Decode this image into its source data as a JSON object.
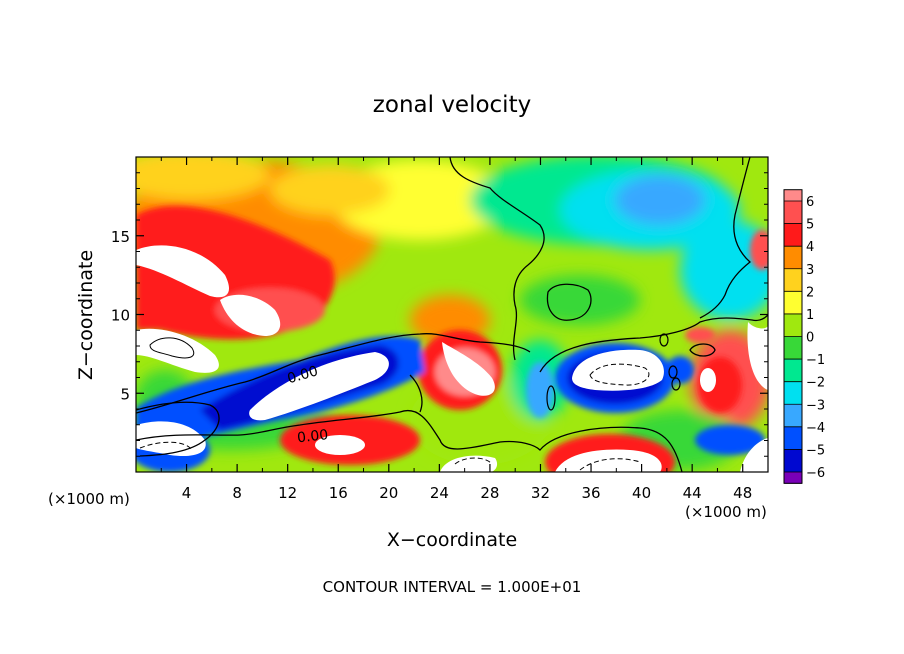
{
  "chart_data": {
    "type": "heatmap",
    "title": "zonal velocity",
    "xlabel": "X−coordinate",
    "ylabel": "Z−coordinate",
    "x_unit_left": "(×1000 m)",
    "x_unit_right": "(×1000 m)",
    "xlim": [
      0,
      50
    ],
    "ylim": [
      0,
      20
    ],
    "xticks": [
      4,
      8,
      12,
      16,
      20,
      24,
      28,
      32,
      36,
      40,
      44,
      48
    ],
    "yticks": [
      5,
      10,
      15
    ],
    "colorbar": {
      "levels": [
        6,
        5,
        4,
        3,
        2,
        1,
        0,
        -1,
        -2,
        -3,
        -4,
        -5,
        -6
      ],
      "level_labels": [
        "6",
        "5",
        "4",
        "3",
        "2",
        "1",
        "0",
        "−1",
        "−2",
        "−3",
        "−4",
        "−5",
        "−6"
      ],
      "colors": [
        "#ff8a8a",
        "#ff5050",
        "#ff1a1a",
        "#ff8c00",
        "#ffd21e",
        "#ffff30",
        "#a0e80f",
        "#38d838",
        "#00e890",
        "#00e0f0",
        "#38a8ff",
        "#0050ff",
        "#0008d0",
        "#7a00b8"
      ],
      "saturated_high": "#ffffff",
      "saturated_low": "#ffffff"
    },
    "contour_labels": [
      "0.00",
      "0.00"
    ],
    "footer": "CONTOUR INTERVAL = 1.000E+01"
  }
}
